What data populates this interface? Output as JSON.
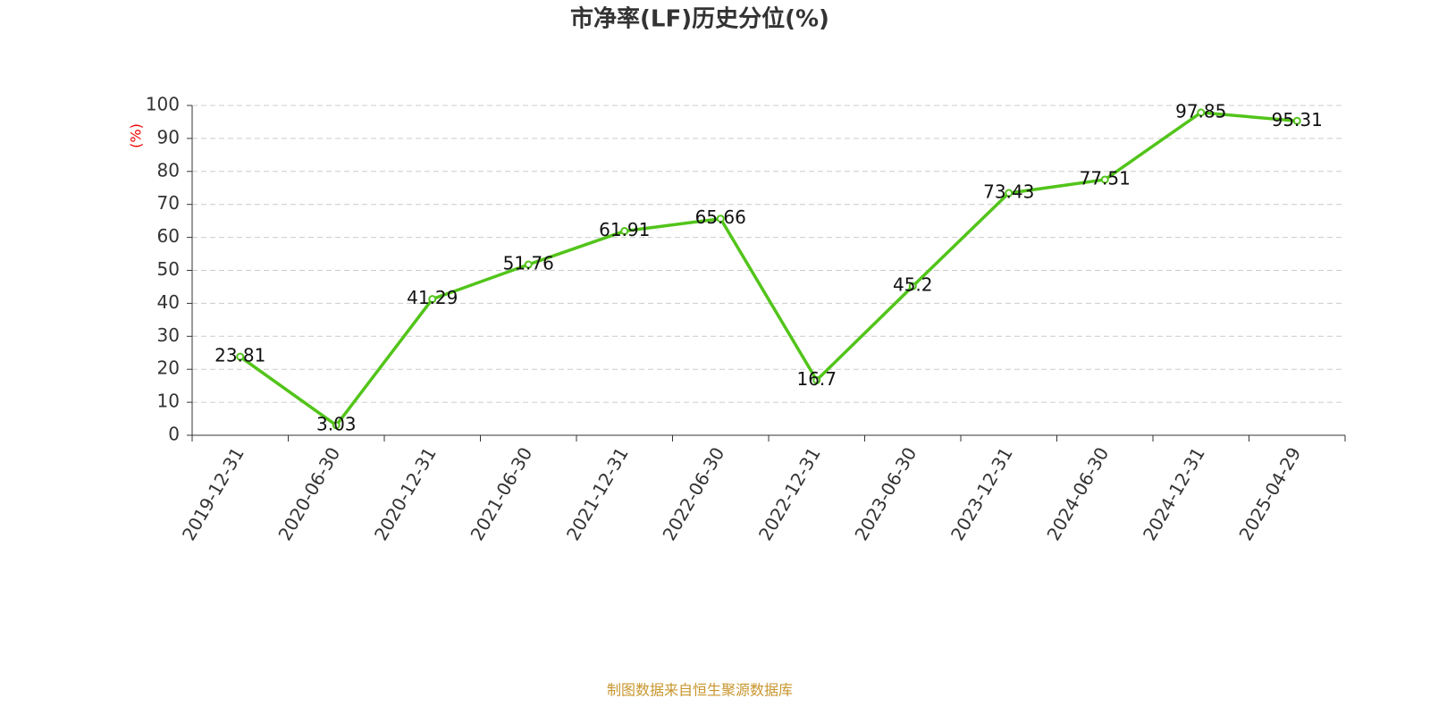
{
  "chart_data": {
    "type": "line",
    "title": "市净率(LF)历史分位(%)",
    "y_label": "(%)",
    "footer": "制图数据来自恒生聚源数据库",
    "categories": [
      "2019-12-31",
      "2020-06-30",
      "2020-12-31",
      "2021-06-30",
      "2021-12-31",
      "2022-06-30",
      "2022-12-31",
      "2023-06-30",
      "2023-12-31",
      "2024-06-30",
      "2024-12-31",
      "2025-04-29"
    ],
    "values": [
      23.81,
      3.03,
      41.29,
      51.76,
      61.91,
      65.66,
      16.7,
      45.2,
      73.43,
      77.51,
      97.85,
      95.31
    ],
    "color": "#52c41a",
    "ylim": [
      0,
      100
    ],
    "yticks": [
      0,
      10,
      20,
      30,
      40,
      50,
      60,
      70,
      80,
      90,
      100
    ],
    "grid": true
  }
}
